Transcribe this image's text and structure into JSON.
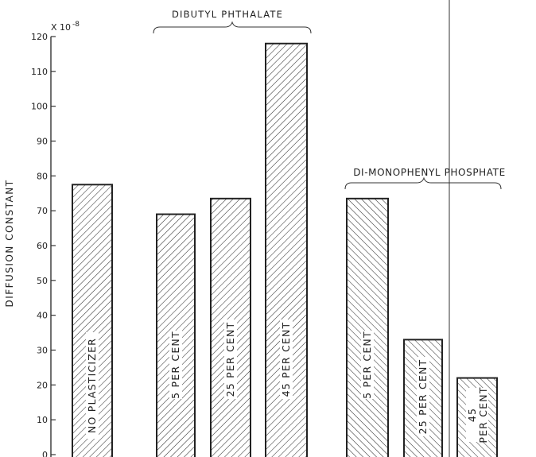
{
  "chart_data": {
    "type": "bar",
    "ylabel": "DIFFUSION CONSTANT",
    "y_scale_label": "X 10",
    "y_scale_exponent": "-8",
    "ylim": [
      0,
      120
    ],
    "yticks": [
      0,
      10,
      20,
      30,
      40,
      50,
      60,
      70,
      80,
      90,
      100,
      110,
      120
    ],
    "groups": [
      {
        "label": "",
        "bars": [
          0
        ]
      },
      {
        "label": "DIBUTYL PHTHALATE",
        "bars": [
          1,
          2,
          3
        ]
      },
      {
        "label": "DI-MONOPHENYL PHOSPHATE",
        "bars": [
          4,
          5,
          6
        ]
      }
    ],
    "bars": [
      {
        "label": "NO PLASTICIZER",
        "value": 77.5,
        "hatch": "forward"
      },
      {
        "label": "5 PER CENT",
        "value": 69,
        "hatch": "forward"
      },
      {
        "label": "25 PER CENT",
        "value": 73.5,
        "hatch": "forward"
      },
      {
        "label": "45 PER CENT",
        "value": 118,
        "hatch": "forward"
      },
      {
        "label": "5 PER CENT",
        "value": 73.5,
        "hatch": "back"
      },
      {
        "label": "25 PER CENT",
        "value": 33,
        "hatch": "back"
      },
      {
        "label": "45 PER CENT",
        "value": 22,
        "hatch": "back"
      }
    ],
    "grid": false,
    "legend": "none"
  }
}
